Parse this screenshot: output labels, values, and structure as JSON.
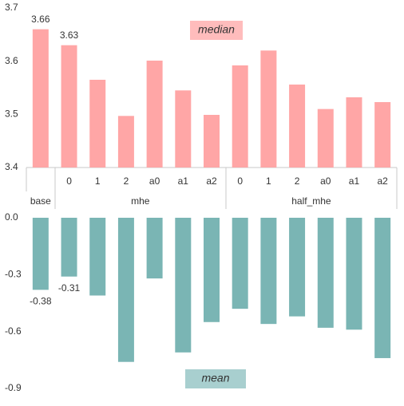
{
  "chart_data": [
    {
      "type": "bar",
      "title": "median",
      "title_box_color": "#ffbcbc",
      "color": "#ffa6a6",
      "groups": [
        {
          "name": "base",
          "categories": [
            null
          ]
        },
        {
          "name": "mhe",
          "categories": [
            "0",
            "1",
            "2",
            "a0",
            "a1",
            "a2"
          ]
        },
        {
          "name": "half_mhe",
          "categories": [
            "0",
            "1",
            "2",
            "a0",
            "a1",
            "a2"
          ]
        }
      ],
      "values": [
        3.66,
        3.63,
        3.565,
        3.497,
        3.601,
        3.545,
        3.499,
        3.592,
        3.62,
        3.556,
        3.51,
        3.532,
        3.523
      ],
      "value_labels": [
        "3.66",
        "3.63",
        null,
        null,
        null,
        null,
        null,
        null,
        null,
        null,
        null,
        null,
        null
      ],
      "ylim": [
        3.4,
        3.7
      ],
      "yticks": [
        3.4,
        3.5,
        3.6,
        3.7
      ]
    },
    {
      "type": "bar",
      "title": "mean",
      "title_box_color": "#a8cfcf",
      "color": "#7ab5b4",
      "values": [
        -0.38,
        -0.31,
        -0.41,
        -0.76,
        -0.32,
        -0.71,
        -0.55,
        -0.48,
        -0.56,
        -0.52,
        -0.58,
        -0.59,
        -0.74
      ],
      "value_labels": [
        "-0.38",
        "-0.31",
        null,
        null,
        null,
        null,
        null,
        null,
        null,
        null,
        null,
        null,
        null
      ],
      "ylim": [
        -0.9,
        0
      ],
      "yticks": [
        {
          "value": 0,
          "label": "0.0"
        },
        -0.3,
        -0.6,
        -0.9
      ]
    }
  ]
}
